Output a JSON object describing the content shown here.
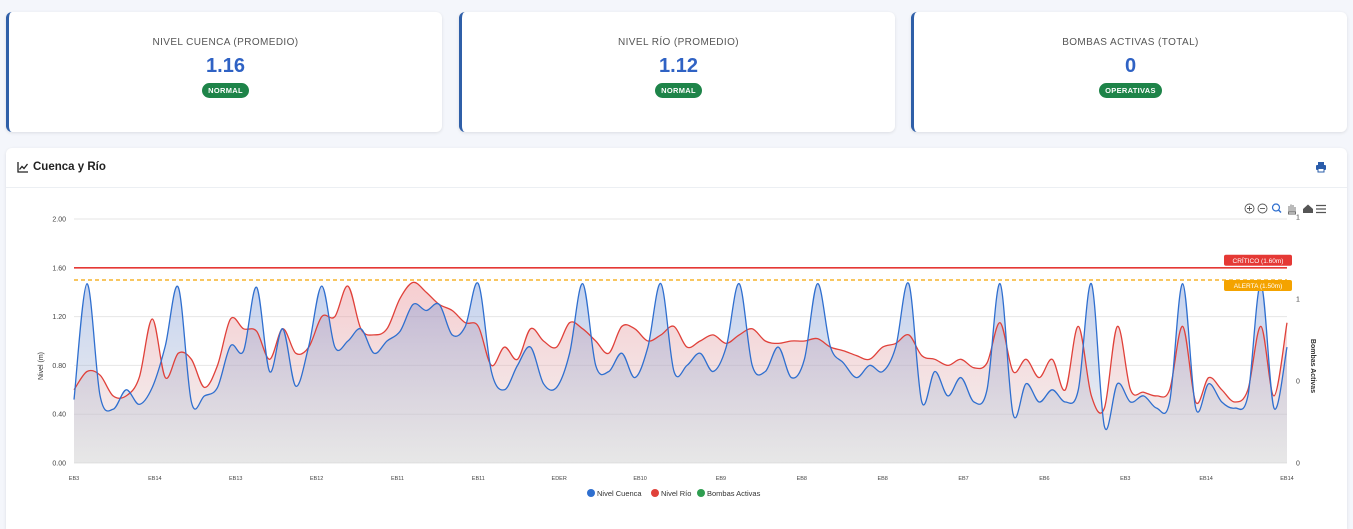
{
  "kpis": [
    {
      "title": "NIVEL CUENCA (PROMEDIO)",
      "value": "1.16",
      "badge": "NORMAL"
    },
    {
      "title": "NIVEL RÍO (PROMEDIO)",
      "value": "1.12",
      "badge": "NORMAL"
    },
    {
      "title": "BOMBAS ACTIVAS (TOTAL)",
      "value": "0",
      "badge": "OPERATIVAS"
    }
  ],
  "panel": {
    "title": "Cuenca y Río"
  },
  "colors": {
    "cuenca": "#2f6fcf",
    "rio": "#e0413a",
    "bombas": "#2e9e50",
    "critico": "#e53935",
    "alerta": "#f4a300",
    "badge": "#1e8449"
  },
  "chart_data": {
    "type": "line",
    "title": "",
    "ylabel": "Nivel (m)",
    "y2label": "Bombas Activas",
    "ylim": [
      0,
      2
    ],
    "yticks": [
      "0.00",
      "0.40",
      "0.80",
      "1.20",
      "1.60",
      "2.00"
    ],
    "y2lim": [
      0,
      1
    ],
    "y2ticks": [
      "0",
      "0",
      "1",
      "1"
    ],
    "x_labels": [
      "EB3",
      "EB14",
      "EB13",
      "EB12",
      "EB11",
      "EB11",
      "EDER",
      "EB10",
      "EB9",
      "EB8",
      "EB8",
      "EB7",
      "EB6",
      "EB3",
      "EB14",
      "EB14"
    ],
    "thresholds": [
      {
        "label": "CRÍTICO (1.60m)",
        "value": 1.6,
        "style": "solid"
      },
      {
        "label": "ALERTA (1.50m)",
        "value": 1.5,
        "style": "dashed"
      }
    ],
    "legend": {
      "position": "bottom",
      "items": [
        "Nivel Cuenca",
        "Nivel Río",
        "Bombas Activas"
      ]
    },
    "series": [
      {
        "name": "Nivel Cuenca",
        "values": [
          0.52,
          1.47,
          0.55,
          0.44,
          0.6,
          0.48,
          0.62,
          0.96,
          1.44,
          0.5,
          0.55,
          0.62,
          0.96,
          0.92,
          1.44,
          0.75,
          1.1,
          0.63,
          0.96,
          1.45,
          0.95,
          1.0,
          1.1,
          0.9,
          1.0,
          1.08,
          1.3,
          1.25,
          1.3,
          1.05,
          1.12,
          1.47,
          0.75,
          0.6,
          0.8,
          0.95,
          0.65,
          0.62,
          0.9,
          1.47,
          0.8,
          0.75,
          0.9,
          0.7,
          0.95,
          1.47,
          0.75,
          0.8,
          0.9,
          0.75,
          0.95,
          1.47,
          0.8,
          0.75,
          0.95,
          0.7,
          0.85,
          1.47,
          0.95,
          0.82,
          0.7,
          0.8,
          0.75,
          0.95,
          1.47,
          0.5,
          0.75,
          0.55,
          0.7,
          0.5,
          0.6,
          1.47,
          0.4,
          0.65,
          0.5,
          0.6,
          0.5,
          0.6,
          1.47,
          0.3,
          0.65,
          0.5,
          0.55,
          0.45,
          0.5,
          1.47,
          0.45,
          0.65,
          0.5,
          0.45,
          0.55,
          1.47,
          0.45,
          0.95
        ]
      },
      {
        "name": "Nivel Río",
        "values": [
          0.6,
          0.75,
          0.72,
          0.55,
          0.55,
          0.7,
          1.18,
          0.7,
          0.9,
          0.85,
          0.62,
          0.8,
          1.18,
          1.1,
          1.08,
          0.85,
          1.1,
          0.9,
          0.95,
          1.2,
          1.2,
          1.45,
          1.1,
          1.05,
          1.1,
          1.35,
          1.48,
          1.4,
          1.3,
          1.25,
          1.15,
          1.12,
          0.8,
          0.95,
          0.85,
          1.1,
          1.0,
          0.95,
          1.15,
          1.1,
          1.0,
          0.9,
          1.12,
          1.1,
          1.0,
          1.05,
          1.12,
          0.95,
          1.0,
          1.05,
          0.98,
          1.05,
          1.1,
          1.0,
          0.98,
          1.0,
          1.0,
          1.02,
          0.95,
          0.92,
          0.88,
          0.85,
          0.95,
          0.98,
          1.05,
          0.88,
          0.85,
          0.8,
          0.85,
          0.78,
          0.82,
          1.15,
          0.75,
          0.85,
          0.7,
          0.85,
          0.6,
          1.12,
          0.55,
          0.45,
          1.12,
          0.6,
          0.58,
          0.55,
          0.6,
          1.12,
          0.5,
          0.7,
          0.6,
          0.5,
          0.6,
          1.12,
          0.55,
          1.15
        ]
      },
      {
        "name": "Bombas Activas",
        "values": []
      }
    ]
  }
}
